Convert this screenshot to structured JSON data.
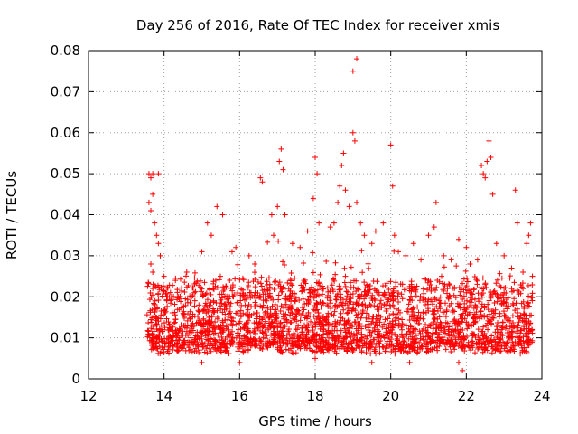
{
  "chart_data": {
    "type": "scatter",
    "title": "Day 256 of 2016, Rate Of TEC Index for receiver xmis",
    "xlabel": "GPS time / hours",
    "ylabel": "ROTI / TECUs",
    "xlim": [
      12,
      24
    ],
    "ylim": [
      0,
      0.08
    ],
    "xticks": [
      "12",
      "14",
      "16",
      "18",
      "20",
      "22",
      "24"
    ],
    "yticks": [
      "0",
      "0.01",
      "0.02",
      "0.03",
      "0.04",
      "0.05",
      "0.06",
      "0.07",
      "0.08"
    ],
    "grid": true,
    "marker": "+",
    "color": "#ff0000",
    "series": [
      {
        "name": "ROTI",
        "points": [
          [
            13.6,
            0.05
          ],
          [
            13.65,
            0.049
          ],
          [
            13.7,
            0.05
          ],
          [
            13.85,
            0.05
          ],
          [
            13.6,
            0.043
          ],
          [
            13.65,
            0.041
          ],
          [
            13.7,
            0.045
          ],
          [
            13.75,
            0.038
          ],
          [
            13.8,
            0.035
          ],
          [
            13.85,
            0.033
          ],
          [
            13.9,
            0.03
          ],
          [
            13.65,
            0.028
          ],
          [
            13.7,
            0.026
          ],
          [
            14.0,
            0.025
          ],
          [
            14.3,
            0.024
          ],
          [
            14.6,
            0.026
          ],
          [
            15.0,
            0.031
          ],
          [
            15.15,
            0.038
          ],
          [
            15.25,
            0.035
          ],
          [
            15.4,
            0.042
          ],
          [
            15.55,
            0.04
          ],
          [
            15.8,
            0.031
          ],
          [
            15.9,
            0.032
          ],
          [
            16.25,
            0.03
          ],
          [
            16.4,
            0.028
          ],
          [
            16.55,
            0.049
          ],
          [
            16.6,
            0.048
          ],
          [
            16.85,
            0.04
          ],
          [
            16.9,
            0.035
          ],
          [
            17.0,
            0.042
          ],
          [
            17.05,
            0.053
          ],
          [
            17.1,
            0.056
          ],
          [
            17.15,
            0.051
          ],
          [
            17.2,
            0.04
          ],
          [
            17.4,
            0.033
          ],
          [
            17.6,
            0.032
          ],
          [
            17.8,
            0.036
          ],
          [
            17.95,
            0.044
          ],
          [
            18.0,
            0.054
          ],
          [
            18.05,
            0.05
          ],
          [
            18.1,
            0.038
          ],
          [
            18.4,
            0.037
          ],
          [
            18.5,
            0.038
          ],
          [
            18.6,
            0.043
          ],
          [
            18.65,
            0.047
          ],
          [
            18.7,
            0.052
          ],
          [
            18.75,
            0.055
          ],
          [
            18.8,
            0.046
          ],
          [
            18.9,
            0.042
          ],
          [
            19.0,
            0.075
          ],
          [
            19.1,
            0.078
          ],
          [
            19.0,
            0.06
          ],
          [
            19.05,
            0.058
          ],
          [
            19.1,
            0.043
          ],
          [
            19.2,
            0.038
          ],
          [
            19.3,
            0.035
          ],
          [
            19.5,
            0.033
          ],
          [
            19.6,
            0.036
          ],
          [
            19.8,
            0.038
          ],
          [
            20.0,
            0.057
          ],
          [
            20.05,
            0.047
          ],
          [
            20.1,
            0.035
          ],
          [
            20.2,
            0.031
          ],
          [
            20.4,
            0.03
          ],
          [
            20.6,
            0.033
          ],
          [
            20.8,
            0.029
          ],
          [
            21.0,
            0.035
          ],
          [
            21.15,
            0.037
          ],
          [
            21.2,
            0.043
          ],
          [
            21.4,
            0.03
          ],
          [
            21.6,
            0.029
          ],
          [
            21.8,
            0.034
          ],
          [
            22.0,
            0.032
          ],
          [
            22.1,
            0.028
          ],
          [
            22.3,
            0.029
          ],
          [
            22.4,
            0.052
          ],
          [
            22.45,
            0.05
          ],
          [
            22.5,
            0.049
          ],
          [
            22.55,
            0.053
          ],
          [
            22.6,
            0.058
          ],
          [
            22.65,
            0.054
          ],
          [
            22.7,
            0.045
          ],
          [
            22.8,
            0.033
          ],
          [
            23.0,
            0.03
          ],
          [
            23.2,
            0.027
          ],
          [
            23.3,
            0.046
          ],
          [
            23.35,
            0.038
          ],
          [
            23.5,
            0.026
          ],
          [
            23.6,
            0.033
          ],
          [
            23.65,
            0.035
          ],
          [
            23.7,
            0.038
          ],
          [
            23.75,
            0.025
          ],
          [
            13.7,
            0.022
          ],
          [
            14.2,
            0.02
          ],
          [
            14.8,
            0.021
          ],
          [
            15.3,
            0.022
          ],
          [
            15.7,
            0.02
          ],
          [
            16.3,
            0.021
          ],
          [
            16.8,
            0.023
          ],
          [
            17.3,
            0.022
          ],
          [
            17.7,
            0.024
          ],
          [
            18.2,
            0.022
          ],
          [
            18.8,
            0.025
          ],
          [
            19.4,
            0.023
          ],
          [
            19.9,
            0.021
          ],
          [
            20.5,
            0.022
          ],
          [
            21.0,
            0.024
          ],
          [
            21.5,
            0.022
          ],
          [
            22.0,
            0.021
          ],
          [
            22.5,
            0.023
          ],
          [
            23.0,
            0.021
          ],
          [
            23.5,
            0.022
          ],
          [
            21.8,
            0.004
          ],
          [
            21.9,
            0.002
          ],
          [
            15.0,
            0.004
          ],
          [
            16.0,
            0.004
          ],
          [
            18.0,
            0.005
          ],
          [
            19.5,
            0.004
          ],
          [
            20.5,
            0.004
          ]
        ]
      }
    ]
  }
}
